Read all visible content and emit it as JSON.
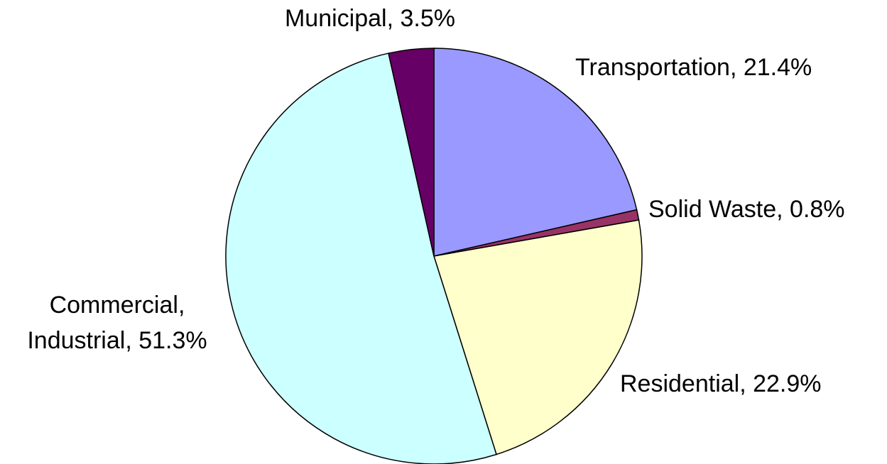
{
  "chart_data": {
    "type": "pie",
    "categories": [
      "Transportation, 21.4%",
      "Solid Waste, 0.8%",
      "Residential, 22.9%",
      "Commercial,\nIndustrial, 51.3%",
      "Municipal, 3.5%"
    ],
    "values": [
      21.4,
      0.8,
      22.9,
      51.3,
      3.5
    ],
    "colors": [
      "#9999ff",
      "#993366",
      "#ffffcc",
      "#ccffff",
      "#660066"
    ]
  }
}
